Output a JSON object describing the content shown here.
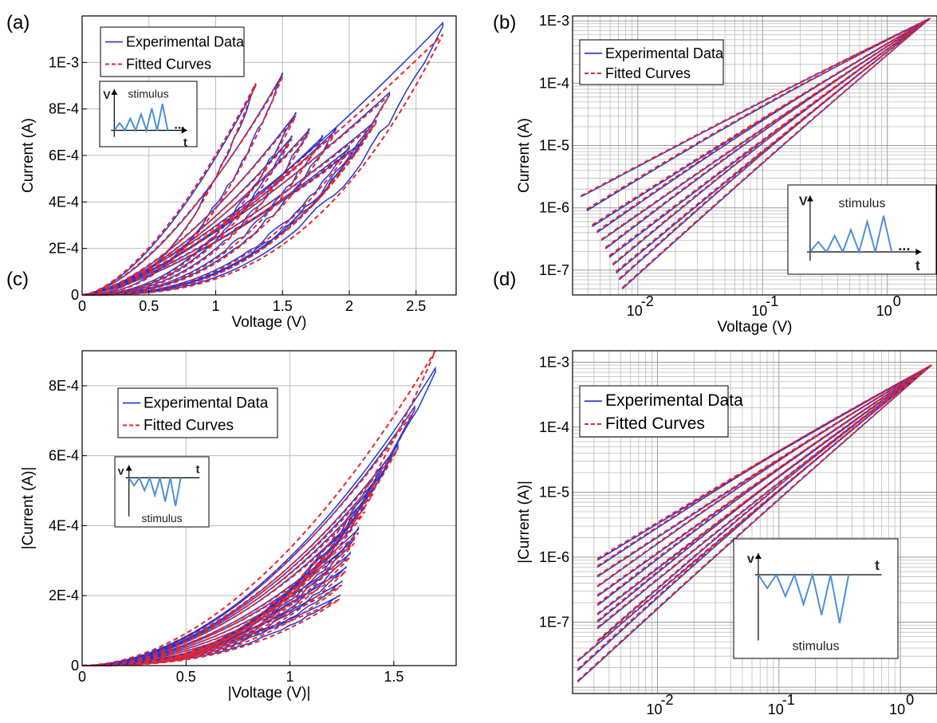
{
  "colors": {
    "experimental": "#1f35d6",
    "fitted": "#e8262a",
    "stimulus": "#4f8fd8",
    "grid": "#bdbdbd"
  },
  "chart_data": [
    {
      "panel": "(a)",
      "type": "line",
      "xlabel": "Voltage (V)",
      "ylabel": "Current (A)",
      "xscale": "linear",
      "yscale": "linear",
      "xlim": [
        0,
        2.8
      ],
      "ylim": [
        0,
        0.0012
      ],
      "xticks": [
        0,
        0.5,
        1,
        1.5,
        2,
        2.5
      ],
      "xtick_labels": [
        "0",
        "0.5",
        "1",
        "1.5",
        "2",
        "2.5"
      ],
      "yticks": [
        0,
        0.0002,
        0.0004,
        0.0006,
        0.0008,
        0.001
      ],
      "ytick_labels": [
        "0",
        "2E-4",
        "4E-4",
        "6E-4",
        "8E-4",
        "1E-3"
      ],
      "grid": true,
      "legend": {
        "position": "top-left",
        "entries": [
          "Experimental Data",
          "Fitted Curves"
        ]
      },
      "inset": {
        "position": "upper-left",
        "label": "stimulus",
        "axis_v": "V",
        "axis_t": "t",
        "ellipsis": "...",
        "polarity": "positive",
        "peaks": [
          0.25,
          0.4,
          0.55,
          0.75,
          0.9
        ]
      },
      "series": [
        {
          "name": "Experimental Data",
          "style": "solid",
          "loops": [
            [
              1.3,
              0.0009
            ],
            [
              1.5,
              0.00095
            ],
            [
              1.6,
              0.00078
            ],
            [
              1.57,
              0.00068
            ],
            [
              1.7,
              0.00071
            ],
            [
              1.8,
              0.00068
            ],
            [
              1.9,
              0.00071
            ],
            [
              2.0,
              0.00063
            ],
            [
              2.1,
              0.00066
            ],
            [
              2.2,
              0.00075
            ],
            [
              2.3,
              0.00087
            ],
            [
              2.7,
              0.00117
            ]
          ]
        },
        {
          "name": "Fitted Curves",
          "style": "dashed",
          "loops": [
            [
              1.3,
              0.00091
            ],
            [
              1.5,
              0.00094
            ],
            [
              1.6,
              0.00077
            ],
            [
              1.57,
              0.00067
            ],
            [
              1.7,
              0.0007
            ],
            [
              1.8,
              0.00067
            ],
            [
              1.9,
              0.0007
            ],
            [
              2.0,
              0.00062
            ],
            [
              2.1,
              0.00065
            ],
            [
              2.2,
              0.00074
            ],
            [
              2.3,
              0.00086
            ],
            [
              2.7,
              0.00112
            ]
          ]
        }
      ]
    },
    {
      "panel": "(b)",
      "type": "line",
      "xlabel": "Voltage (V)",
      "ylabel": "Current (A)",
      "xscale": "log",
      "yscale": "log",
      "xlim": [
        0.003,
        2.5
      ],
      "ylim": [
        4e-08,
        0.0012
      ],
      "xtick_labels": [
        "10",
        "10",
        "10"
      ],
      "xtick_exponents": [
        "-2",
        "-1",
        "0"
      ],
      "ytick_labels": [
        "1E-7",
        "1E-6",
        "1E-5",
        "1E-4",
        "1E-3"
      ],
      "grid": true,
      "legend": {
        "position": "top-left",
        "entries": [
          "Experimental Data",
          "Fitted Curves"
        ]
      },
      "inset": {
        "position": "lower-right",
        "label": "stimulus",
        "axis_v": "V",
        "axis_t": "t",
        "ellipsis": "...",
        "polarity": "positive",
        "peaks": [
          0.25,
          0.4,
          0.55,
          0.75,
          0.9
        ]
      },
      "series": [
        {
          "name": "Experimental Data",
          "style": "solid",
          "loop_start_currents": [
            1.5e-06,
            9e-07,
            5e-07,
            4e-07,
            3e-07,
            2.2e-07,
            1.6e-07,
            1.2e-07,
            9e-08,
            7e-08,
            5e-08
          ]
        },
        {
          "name": "Fitted Curves",
          "style": "dashed",
          "loop_start_currents": [
            1.55e-06,
            9.5e-07,
            5.3e-07,
            4.2e-07,
            3.1e-07,
            2.3e-07,
            1.7e-07,
            1.25e-07,
            9.5e-08,
            7.3e-08,
            5.2e-08
          ]
        }
      ]
    },
    {
      "panel": "(c)",
      "type": "line",
      "xlabel": "|Voltage (V)|",
      "ylabel": "|Current (A)|",
      "xscale": "linear",
      "yscale": "linear",
      "xlim": [
        0,
        1.8
      ],
      "ylim": [
        0,
        0.0009
      ],
      "xticks": [
        0,
        0.5,
        1,
        1.5
      ],
      "xtick_labels": [
        "0",
        "0.5",
        "1",
        "1.5"
      ],
      "yticks": [
        0,
        0.0002,
        0.0004,
        0.0006,
        0.0008
      ],
      "ytick_labels": [
        "0",
        "2E-4",
        "4E-4",
        "6E-4",
        "8E-4"
      ],
      "grid": true,
      "legend": {
        "position": "top-center",
        "entries": [
          "Experimental Data",
          "Fitted Curves"
        ]
      },
      "inset": {
        "position": "upper-left",
        "label": "stimulus",
        "axis_v": "v",
        "axis_t": "t",
        "polarity": "negative",
        "peaks": [
          0.25,
          0.4,
          0.55,
          0.75,
          0.9
        ]
      },
      "series": [
        {
          "name": "Experimental Data",
          "style": "solid",
          "loop_tips": [
            [
              1.24,
              0.0002
            ],
            [
              1.25,
              0.00024
            ],
            [
              1.27,
              0.00028
            ],
            [
              1.29,
              0.00032
            ],
            [
              1.31,
              0.00036
            ],
            [
              1.33,
              0.00039
            ],
            [
              1.36,
              0.00045
            ],
            [
              1.4,
              0.0005
            ],
            [
              1.44,
              0.00055
            ],
            [
              1.52,
              0.00063
            ],
            [
              1.6,
              0.00074
            ],
            [
              1.7,
              0.00085
            ]
          ]
        },
        {
          "name": "Fitted Curves",
          "style": "dashed",
          "loop_tips": [
            [
              1.24,
              0.00019
            ],
            [
              1.25,
              0.00023
            ],
            [
              1.27,
              0.00027
            ],
            [
              1.29,
              0.00031
            ],
            [
              1.31,
              0.00035
            ],
            [
              1.33,
              0.00038
            ],
            [
              1.36,
              0.00044
            ],
            [
              1.4,
              0.00049
            ],
            [
              1.44,
              0.00054
            ],
            [
              1.52,
              0.00062
            ],
            [
              1.6,
              0.00073
            ],
            [
              1.7,
              0.0009
            ]
          ]
        }
      ]
    },
    {
      "panel": "(d)",
      "type": "line",
      "xlabel": "|Voltage (V)|",
      "ylabel": "|Current (A)|",
      "xscale": "log",
      "yscale": "log",
      "xlim": [
        0.002,
        2.0
      ],
      "ylim": [
        8e-09,
        0.0015
      ],
      "xtick_labels": [
        "10",
        "10",
        "10"
      ],
      "xtick_exponents": [
        "-2",
        "-1",
        "0"
      ],
      "ytick_labels": [
        "1E-7",
        "1E-6",
        "1E-5",
        "1E-4",
        "1E-3"
      ],
      "grid": true,
      "legend": {
        "position": "top-left",
        "entries": [
          "Experimental Data",
          "Fitted Curves"
        ]
      },
      "inset": {
        "position": "lower-right",
        "label": "stimulus",
        "axis_v": "v",
        "axis_t": "t",
        "polarity": "negative",
        "peaks": [
          0.25,
          0.4,
          0.55,
          0.75,
          0.9
        ]
      },
      "series": [
        {
          "name": "Experimental Data",
          "style": "solid",
          "loop_start_currents": [
            9e-07,
            7e-07,
            5e-07,
            3.5e-07,
            2.5e-07,
            1.8e-07,
            1.3e-07,
            1e-07,
            8e-08,
            5e-08,
            2.5e-08,
            1.8e-08,
            1.2e-08
          ]
        },
        {
          "name": "Fitted Curves",
          "style": "dashed",
          "loop_start_currents": [
            9.5e-07,
            7.3e-07,
            5.2e-07,
            3.6e-07,
            2.6e-07,
            1.9e-07,
            1.35e-07,
            1.05e-07,
            8.3e-08,
            5.2e-08,
            2.6e-08,
            1.9e-08,
            1.25e-08
          ]
        }
      ]
    }
  ]
}
